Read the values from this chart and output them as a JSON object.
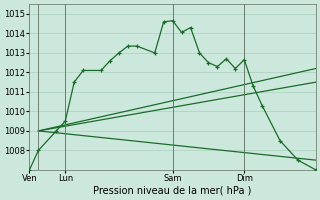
{
  "background_color": "#cce8dc",
  "grid_color": "#aacfbe",
  "line_color": "#1a6b2a",
  "xlabel": "Pression niveau de la mer( hPa )",
  "ylim": [
    1007.0,
    1015.5
  ],
  "yticks": [
    1008,
    1009,
    1010,
    1011,
    1012,
    1013,
    1014,
    1015
  ],
  "xtick_labels": [
    "Ven",
    "Lun",
    "Sam",
    "Dim"
  ],
  "xtick_positions": [
    0,
    24,
    96,
    144
  ],
  "vlines_x": [
    6,
    24,
    96,
    144
  ],
  "xlim": [
    0,
    192
  ],
  "series1_x": [
    0,
    6,
    18,
    24,
    30,
    36,
    48,
    54,
    60,
    66,
    72,
    84,
    90,
    96,
    102,
    108,
    114,
    120,
    126,
    132,
    138,
    144,
    150,
    156,
    168,
    180,
    192
  ],
  "series1_y": [
    1007.0,
    1008.0,
    1009.0,
    1009.5,
    1011.5,
    1012.1,
    1012.1,
    1012.6,
    1013.0,
    1013.35,
    1013.35,
    1013.0,
    1014.6,
    1014.65,
    1014.05,
    1014.3,
    1013.0,
    1012.5,
    1012.3,
    1012.7,
    1012.2,
    1012.65,
    1011.3,
    1010.3,
    1008.5,
    1007.5,
    1007.0
  ],
  "series2_x": [
    6,
    192
  ],
  "series2_y": [
    1009.0,
    1012.2
  ],
  "series3_x": [
    6,
    192
  ],
  "series3_y": [
    1009.0,
    1011.5
  ],
  "series4_x": [
    6,
    192
  ],
  "series4_y": [
    1009.0,
    1007.5
  ],
  "xlabel_fontsize": 7,
  "tick_fontsize": 6
}
